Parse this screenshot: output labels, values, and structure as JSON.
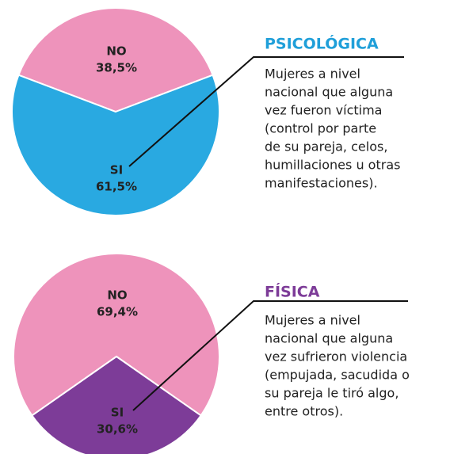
{
  "chart_data": [
    {
      "type": "pie",
      "title": "PSICOLÓGICA",
      "title_color": "#1f9fd9",
      "description": [
        "Mujeres a nivel",
        "nacional que alguna",
        "vez fueron víctima",
        "(control por parte",
        "de su pareja, celos,",
        "humillaciones u otras",
        "manifestaciones)."
      ],
      "categories": [
        "NO",
        "SI"
      ],
      "values": [
        38.5,
        61.5
      ],
      "value_labels": [
        "38,5%",
        "61,5%"
      ],
      "colors": [
        "#ee93bb",
        "#29a9e1"
      ]
    },
    {
      "type": "pie",
      "title": "FÍSICA",
      "title_color": "#7d3c98",
      "description": [
        "Mujeres a nivel",
        "nacional que alguna",
        "vez sufrieron violencia",
        "(empujada, sacudida o",
        "su pareja le tiró algo,",
        "entre otros)."
      ],
      "categories": [
        "NO",
        "SI"
      ],
      "values": [
        69.4,
        30.6
      ],
      "value_labels": [
        "69,4%",
        "30,6%"
      ],
      "colors": [
        "#ee93bb",
        "#7d3c98"
      ]
    }
  ]
}
